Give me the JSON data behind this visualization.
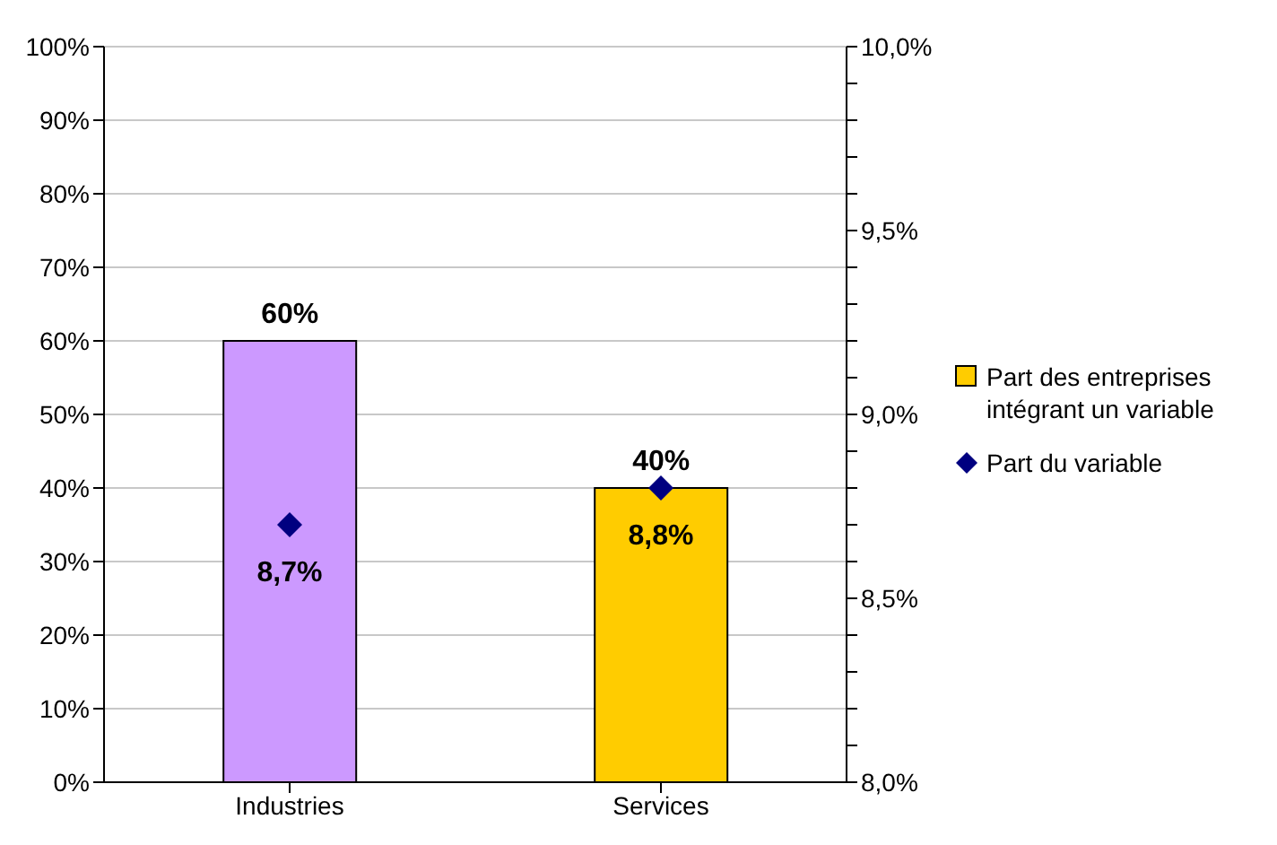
{
  "chart_data": {
    "type": "bar",
    "categories": [
      "Industries",
      "Services"
    ],
    "series": [
      {
        "name": "Part des entreprises intégrant un variable",
        "color": "#ffcc00",
        "colors": [
          "#cc99ff",
          "#ffcc00"
        ],
        "values": [
          60,
          40
        ],
        "value_labels": [
          "60%",
          "40%"
        ]
      },
      {
        "type": "scatter",
        "name": "Part du variable",
        "color": "#000080",
        "axis": "y2",
        "values": [
          8.7,
          8.8
        ],
        "value_labels": [
          "8,7%",
          "8,8%"
        ],
        "marker": "diamond"
      }
    ],
    "ylim": [
      0,
      100
    ],
    "yticks": [
      {
        "value": 0,
        "label": "0%"
      },
      {
        "value": 10,
        "label": "10%"
      },
      {
        "value": 20,
        "label": "20%"
      },
      {
        "value": 30,
        "label": "30%"
      },
      {
        "value": 40,
        "label": "40%"
      },
      {
        "value": 50,
        "label": "50%"
      },
      {
        "value": 60,
        "label": "60%"
      },
      {
        "value": 70,
        "label": "70%"
      },
      {
        "value": 80,
        "label": "80%"
      },
      {
        "value": 90,
        "label": "90%"
      },
      {
        "value": 100,
        "label": "100%"
      }
    ],
    "y2lim": [
      8,
      10
    ],
    "y2ticks": [
      {
        "value": 8,
        "label": "8,0%"
      },
      {
        "value": 8.1,
        "label": null
      },
      {
        "value": 8.2,
        "label": null
      },
      {
        "value": 8.3,
        "label": null
      },
      {
        "value": 8.4,
        "label": null
      },
      {
        "value": 8.5,
        "label": "8,5%"
      },
      {
        "value": 8.6,
        "label": null
      },
      {
        "value": 8.7,
        "label": null
      },
      {
        "value": 8.8,
        "label": null
      },
      {
        "value": 8.9,
        "label": null
      },
      {
        "value": 9,
        "label": "9,0%"
      },
      {
        "value": 9.1,
        "label": null
      },
      {
        "value": 9.2,
        "label": null
      },
      {
        "value": 9.3,
        "label": null
      },
      {
        "value": 9.4,
        "label": null
      },
      {
        "value": 9.5,
        "label": "9,5%"
      },
      {
        "value": 9.6,
        "label": null
      },
      {
        "value": 9.7,
        "label": null
      },
      {
        "value": 9.8,
        "label": null
      },
      {
        "value": 9.9,
        "label": null
      },
      {
        "value": 10,
        "label": "10,0%"
      }
    ],
    "grid": "y",
    "legend": "right"
  }
}
